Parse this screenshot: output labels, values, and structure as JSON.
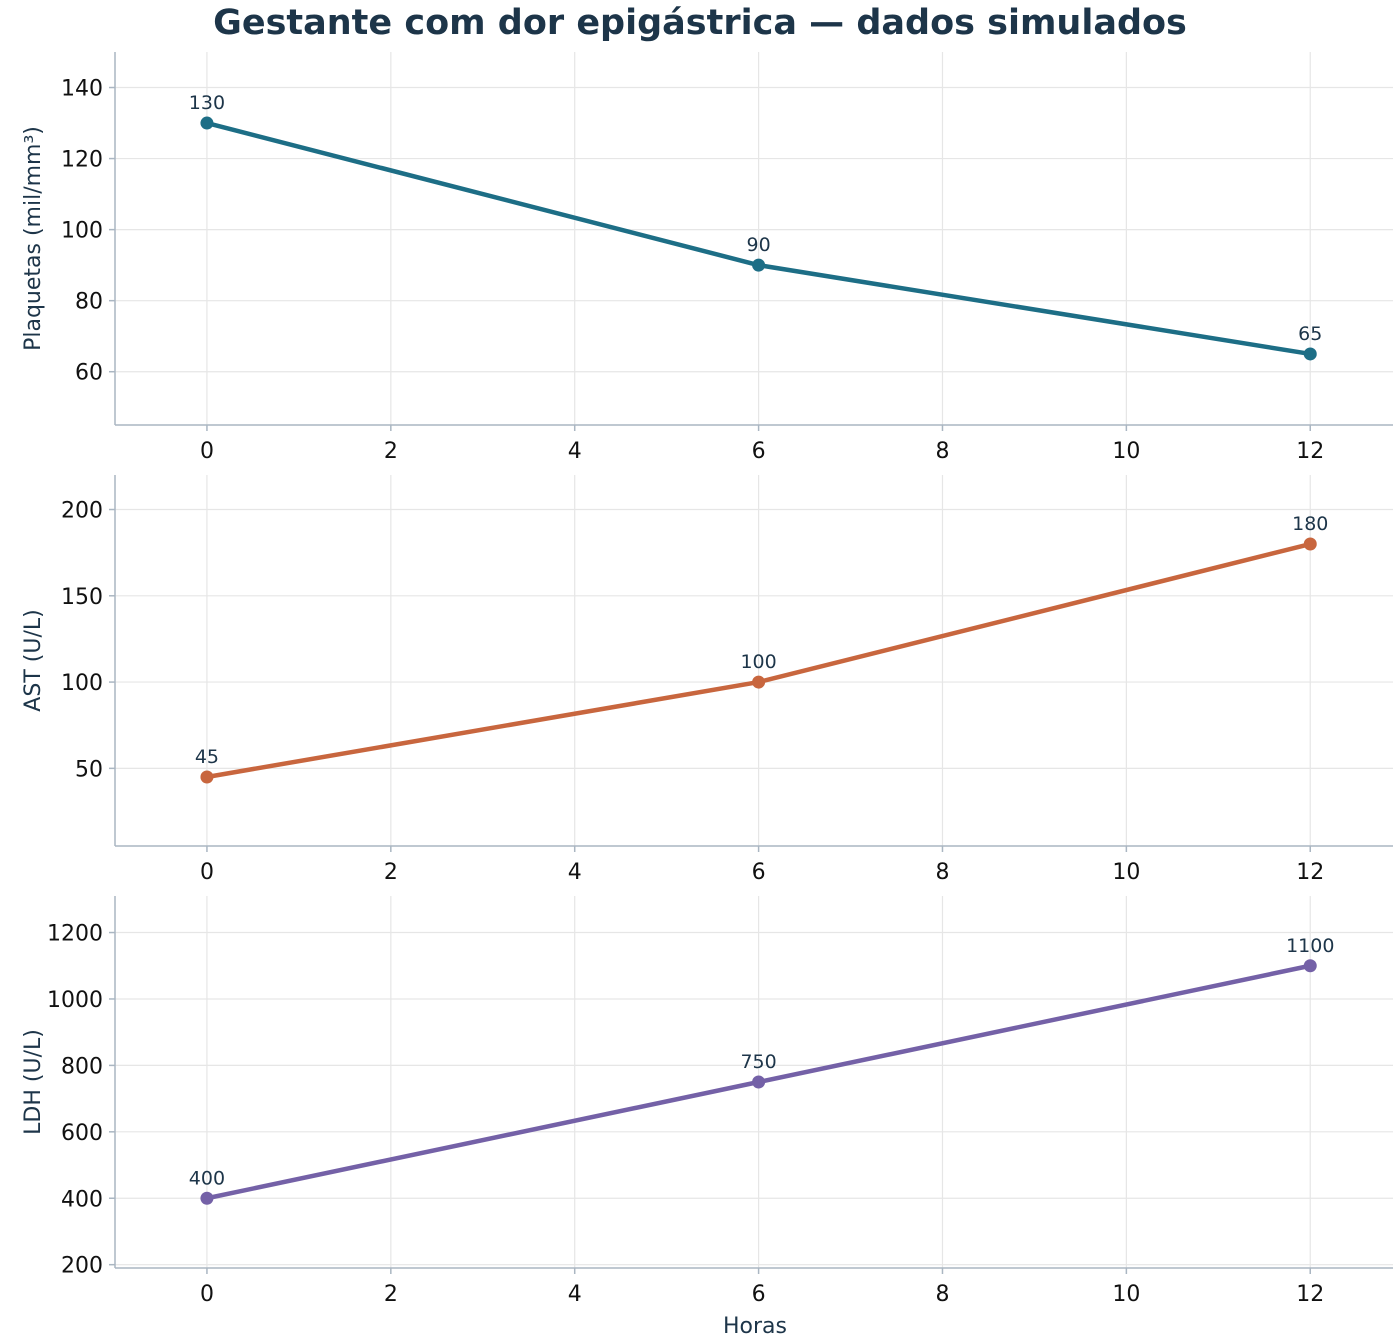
{
  "chart_data": {
    "type": "line",
    "title": "Gestante com dor epigástrica — dados simulados",
    "xlabel": "Horas",
    "x_ticks": [
      0,
      2,
      4,
      6,
      8,
      10,
      12
    ],
    "xlim": [
      -1,
      12.9
    ],
    "grid": true,
    "legend": "none",
    "panels": [
      {
        "ylabel": "Plaquetas (mil/mm³)",
        "color": "#1d6e86",
        "ylim": [
          45,
          150
        ],
        "y_ticks": [
          60,
          80,
          100,
          120,
          140
        ],
        "series": [
          {
            "x": [
              0,
              6,
              12
            ],
            "values": [
              130,
              90,
              65
            ]
          }
        ],
        "data_labels": [
          "130",
          "90",
          "65"
        ]
      },
      {
        "ylabel": "AST (U/L)",
        "color": "#c8663e",
        "ylim": [
          5,
          220
        ],
        "y_ticks": [
          50,
          100,
          150,
          200
        ],
        "series": [
          {
            "x": [
              0,
              6,
              12
            ],
            "values": [
              45,
              100,
              180
            ]
          }
        ],
        "data_labels": [
          "45",
          "100",
          "180"
        ]
      },
      {
        "ylabel": "LDH (U/L)",
        "color": "#7461a7",
        "ylim": [
          190,
          1310
        ],
        "y_ticks": [
          200,
          400,
          600,
          800,
          1000,
          1200
        ],
        "series": [
          {
            "x": [
              0,
              6,
              12
            ],
            "values": [
              400,
              750,
              1100
            ]
          }
        ],
        "data_labels": [
          "400",
          "750",
          "1100"
        ]
      }
    ]
  }
}
